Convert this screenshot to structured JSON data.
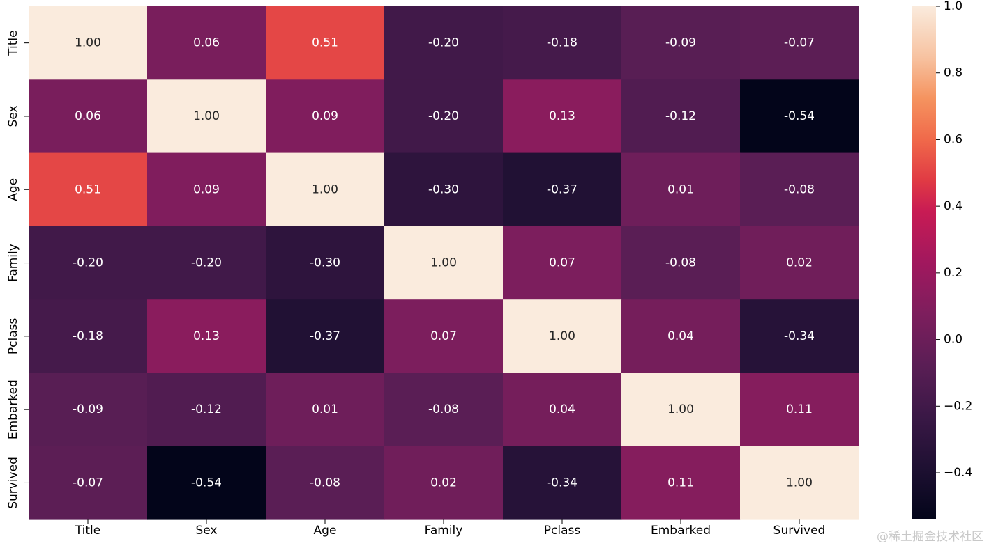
{
  "chart_data": {
    "type": "heatmap",
    "title": "",
    "xlabel": "",
    "ylabel": "",
    "x_labels": [
      "Title",
      "Sex",
      "Age",
      "Family",
      "Pclass",
      "Embarked",
      "Survived"
    ],
    "y_labels": [
      "Title",
      "Sex",
      "Age",
      "Family",
      "Pclass",
      "Embarked",
      "Survived"
    ],
    "values": [
      [
        1.0,
        0.06,
        0.51,
        -0.2,
        -0.18,
        -0.09,
        -0.07
      ],
      [
        0.06,
        1.0,
        0.09,
        -0.2,
        0.13,
        -0.12,
        -0.54
      ],
      [
        0.51,
        0.09,
        1.0,
        -0.3,
        -0.37,
        0.01,
        -0.08
      ],
      [
        -0.2,
        -0.2,
        -0.3,
        1.0,
        0.07,
        -0.08,
        0.02
      ],
      [
        -0.18,
        0.13,
        -0.37,
        0.07,
        1.0,
        0.04,
        -0.34
      ],
      [
        -0.09,
        -0.12,
        0.01,
        -0.08,
        0.04,
        1.0,
        0.11
      ],
      [
        -0.07,
        -0.54,
        -0.08,
        0.02,
        -0.34,
        0.11,
        1.0
      ]
    ],
    "annotation_format": "0.00",
    "colormap": "rocket",
    "colorbar": {
      "range": [
        -0.54,
        1.0
      ],
      "ticks": [
        1.0,
        0.8,
        0.6,
        0.4,
        0.2,
        0.0,
        -0.2,
        -0.4
      ],
      "tick_labels": [
        "1.0",
        "0.8",
        "0.6",
        "0.4",
        "0.2",
        "0.0",
        "−0.2",
        "−0.4"
      ]
    },
    "colormap_stops": [
      {
        "t": 0.0,
        "color": "#03051a"
      },
      {
        "t": 0.1,
        "color": "#1e1032"
      },
      {
        "t": 0.2,
        "color": "#3a1846"
      },
      {
        "t": 0.3,
        "color": "#5a1e55"
      },
      {
        "t": 0.4,
        "color": "#7d1e5d"
      },
      {
        "t": 0.5,
        "color": "#a1185e"
      },
      {
        "t": 0.6,
        "color": "#c81b54"
      },
      {
        "t": 0.66,
        "color": "#e03a44"
      },
      {
        "t": 0.74,
        "color": "#f0694a"
      },
      {
        "t": 0.82,
        "color": "#f5935f"
      },
      {
        "t": 0.9,
        "color": "#f7c2a0"
      },
      {
        "t": 1.0,
        "color": "#faebdd"
      }
    ]
  },
  "watermark": "@稀土掘金技术社区"
}
